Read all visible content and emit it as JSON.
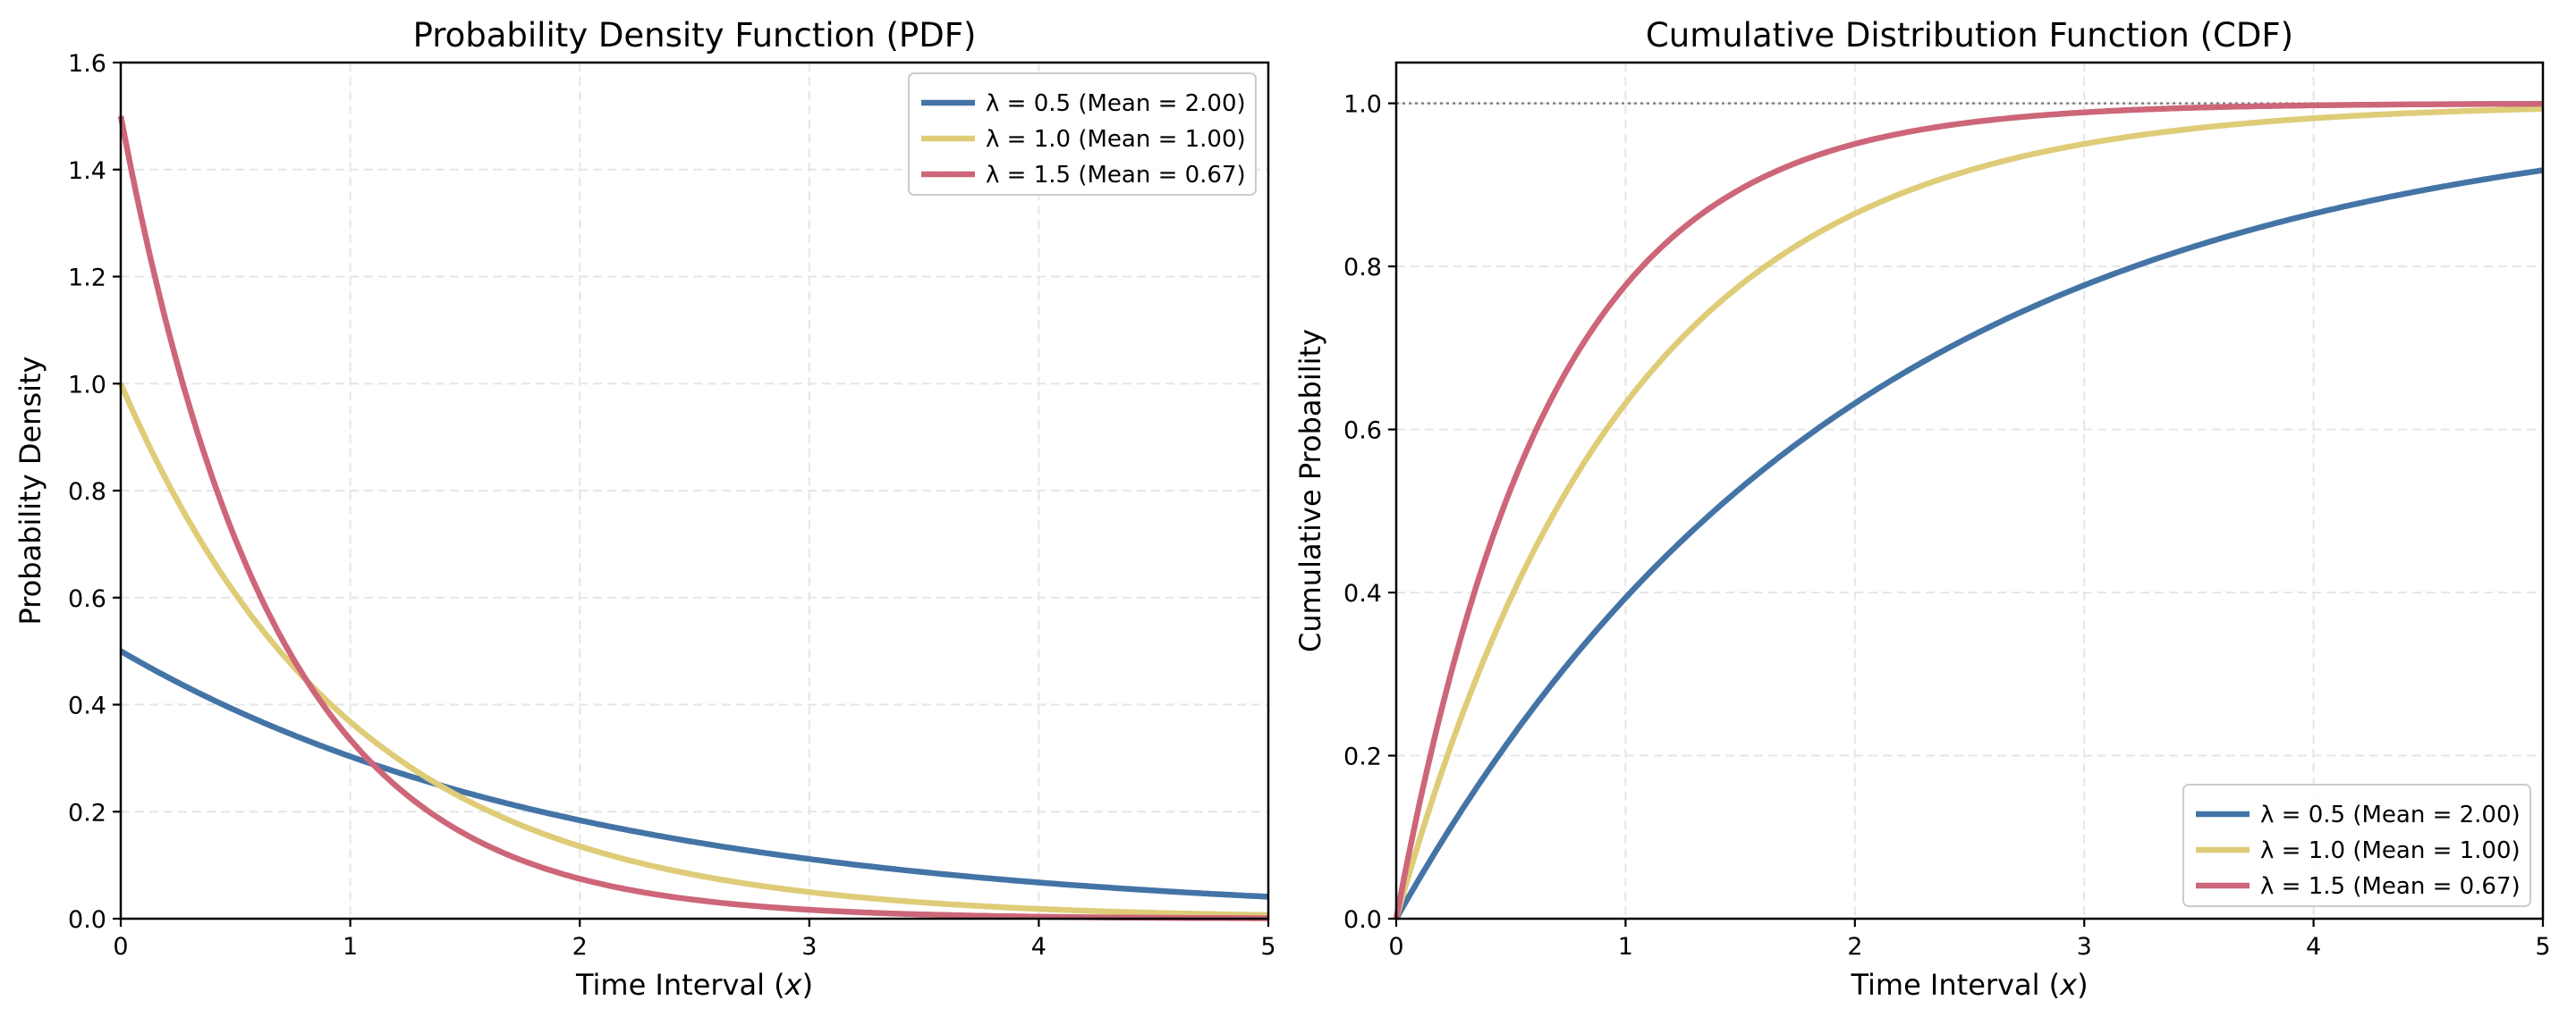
{
  "colors": {
    "series": [
      "#4474a6",
      "#dfcc78",
      "#cd6678"
    ],
    "grid": "#e6e6e6",
    "reference_line": "#808080",
    "legend_border": "#cccccc"
  },
  "chart_data": [
    {
      "id": "pdf",
      "type": "line",
      "title": "Probability Density Function (PDF)",
      "xlabel": "Time Interval (x)",
      "ylabel": "Probability Density",
      "xlim": [
        0,
        5
      ],
      "ylim": [
        0,
        1.6
      ],
      "xticks": [
        0,
        1,
        2,
        3,
        4,
        5
      ],
      "xtick_labels": [
        "0",
        "1",
        "2",
        "3",
        "4",
        "5"
      ],
      "yticks": [
        0.0,
        0.2,
        0.4,
        0.6,
        0.8,
        1.0,
        1.2,
        1.4,
        1.6
      ],
      "ytick_labels": [
        "0.0",
        "0.2",
        "0.4",
        "0.6",
        "0.8",
        "1.0",
        "1.2",
        "1.4",
        "1.6"
      ],
      "grid": true,
      "legend_position": "top-right",
      "function": "lambda * exp(-lambda * x)",
      "x": [
        0,
        0.25,
        0.5,
        0.75,
        1,
        1.5,
        2,
        2.5,
        3,
        3.5,
        4,
        4.5,
        5
      ],
      "series": [
        {
          "name": "λ = 0.5 (Mean = 2.00)",
          "lambda": 0.5,
          "mean": 2.0,
          "values": [
            0.5,
            0.441,
            0.389,
            0.344,
            0.303,
            0.236,
            0.184,
            0.143,
            0.112,
            0.087,
            0.068,
            0.053,
            0.041
          ]
        },
        {
          "name": "λ = 1.0 (Mean = 1.00)",
          "lambda": 1.0,
          "mean": 1.0,
          "values": [
            1.0,
            0.779,
            0.607,
            0.472,
            0.368,
            0.223,
            0.135,
            0.082,
            0.05,
            0.03,
            0.018,
            0.011,
            0.007
          ]
        },
        {
          "name": "λ = 1.5 (Mean = 0.67)",
          "lambda": 1.5,
          "mean": 0.67,
          "values": [
            1.5,
            1.031,
            0.709,
            0.487,
            0.335,
            0.158,
            0.075,
            0.035,
            0.017,
            0.008,
            0.004,
            0.002,
            0.001
          ]
        }
      ]
    },
    {
      "id": "cdf",
      "type": "line",
      "title": "Cumulative Distribution Function (CDF)",
      "xlabel": "Time Interval (x)",
      "ylabel": "Cumulative Probability",
      "xlim": [
        0,
        5
      ],
      "ylim": [
        0,
        1.05
      ],
      "xticks": [
        0,
        1,
        2,
        3,
        4,
        5
      ],
      "xtick_labels": [
        "0",
        "1",
        "2",
        "3",
        "4",
        "5"
      ],
      "yticks": [
        0.0,
        0.2,
        0.4,
        0.6,
        0.8,
        1.0
      ],
      "ytick_labels": [
        "0.0",
        "0.2",
        "0.4",
        "0.6",
        "0.8",
        "1.0"
      ],
      "grid": true,
      "reference_line_y": 1.0,
      "legend_position": "bottom-right",
      "function": "1 - exp(-lambda * x)",
      "x": [
        0,
        0.25,
        0.5,
        0.75,
        1,
        1.5,
        2,
        2.5,
        3,
        3.5,
        4,
        4.5,
        5
      ],
      "series": [
        {
          "name": "λ = 0.5 (Mean = 2.00)",
          "lambda": 0.5,
          "mean": 2.0,
          "values": [
            0,
            0.118,
            0.221,
            0.313,
            0.393,
            0.528,
            0.632,
            0.713,
            0.777,
            0.826,
            0.865,
            0.895,
            0.918
          ]
        },
        {
          "name": "λ = 1.0 (Mean = 1.00)",
          "lambda": 1.0,
          "mean": 1.0,
          "values": [
            0,
            0.221,
            0.393,
            0.528,
            0.632,
            0.777,
            0.865,
            0.918,
            0.95,
            0.97,
            0.982,
            0.989,
            0.993
          ]
        },
        {
          "name": "λ = 1.5 (Mean = 0.67)",
          "lambda": 1.5,
          "mean": 0.67,
          "values": [
            0,
            0.313,
            0.528,
            0.675,
            0.777,
            0.895,
            0.95,
            0.976,
            0.989,
            0.995,
            0.998,
            0.999,
            0.999
          ]
        }
      ]
    }
  ]
}
